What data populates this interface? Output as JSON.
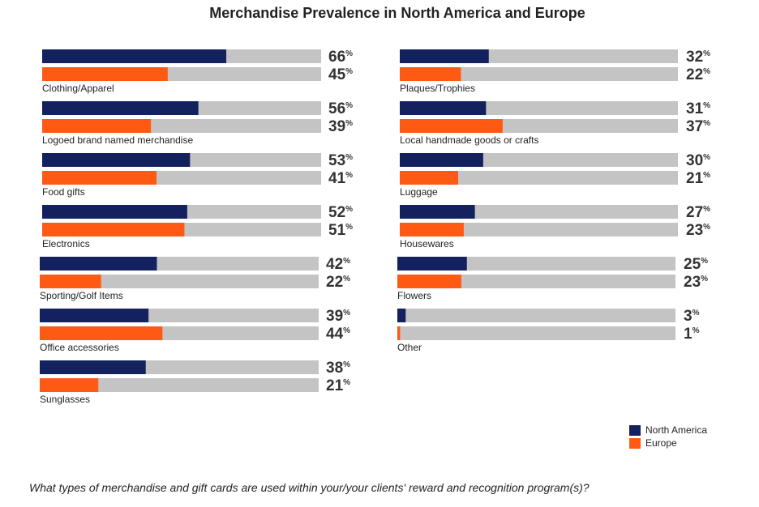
{
  "chart_data": {
    "type": "bar",
    "title": "Merchandise Prevalence in North America and Europe",
    "question": "What types of merchandise and gift cards are used within your/your clients' reward and recognition program(s)?",
    "unit": "%",
    "xlim": [
      0,
      100
    ],
    "series": [
      {
        "name": "North America",
        "color": "#13215e"
      },
      {
        "name": "Europe",
        "color": "#ff5a14"
      }
    ],
    "track_color": "#c4c4c4",
    "groups": [
      {
        "category": "Clothing/Apparel",
        "values": [
          66,
          45
        ],
        "column": "left"
      },
      {
        "category": "Logoed brand named merchandise",
        "values": [
          56,
          39
        ],
        "column": "left"
      },
      {
        "category": "Food gifts",
        "values": [
          53,
          41
        ],
        "column": "left"
      },
      {
        "category": "Electronics",
        "values": [
          52,
          51
        ],
        "column": "left"
      },
      {
        "category": "Sporting/Golf Items",
        "values": [
          42,
          22
        ],
        "column": "left"
      },
      {
        "category": "Office accessories",
        "values": [
          39,
          44
        ],
        "column": "left"
      },
      {
        "category": "Sunglasses",
        "values": [
          38,
          21
        ],
        "column": "left"
      },
      {
        "category": "Plaques/Trophies",
        "values": [
          32,
          22
        ],
        "column": "right"
      },
      {
        "category": "Local handmade goods or crafts",
        "values": [
          31,
          37
        ],
        "column": "right"
      },
      {
        "category": "Luggage",
        "values": [
          30,
          21
        ],
        "column": "right"
      },
      {
        "category": "Housewares",
        "values": [
          27,
          23
        ],
        "column": "right"
      },
      {
        "category": "Flowers",
        "values": [
          25,
          23
        ],
        "column": "right"
      },
      {
        "category": "Other",
        "values": [
          3,
          1
        ],
        "column": "right"
      }
    ]
  }
}
